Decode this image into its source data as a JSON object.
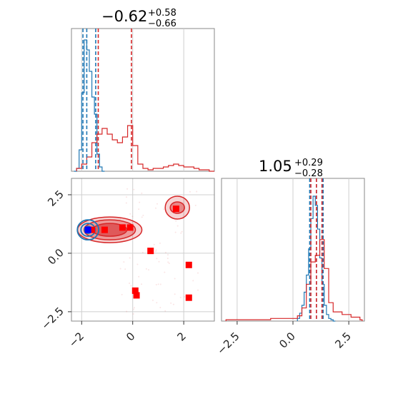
{
  "chart_data": [
    {
      "type": "histogram",
      "panel": "top-left marginal",
      "title": {
        "main": "−0.62",
        "upper": "+0.58",
        "lower": "−0.66"
      },
      "xlim": [
        -2.4,
        3.2
      ],
      "grid": true,
      "series": [
        {
          "color": "#1f77b4",
          "bins": [
            -2.3,
            -2.2,
            -2.1,
            -2.0,
            -1.9,
            -1.8,
            -1.7,
            -1.6,
            -1.5,
            -1.4,
            -1.3,
            -1.2
          ],
          "density": [
            0,
            0.02,
            0.15,
            0.55,
            0.92,
            0.85,
            0.7,
            0.52,
            0.4,
            0.12,
            0.03,
            0
          ],
          "quantile_lines": [
            -1.95,
            -1.8,
            -1.45
          ]
        },
        {
          "color": "#d62728",
          "bins": [
            -2.2,
            -2.0,
            -1.8,
            -1.6,
            -1.4,
            -1.2,
            -1.0,
            -0.8,
            -0.6,
            -0.4,
            -0.2,
            0.0,
            0.2,
            0.4,
            0.6,
            0.8,
            1.0,
            1.2,
            1.4,
            1.6,
            1.8,
            2.0,
            2.2,
            2.4,
            2.6,
            2.8,
            3.0
          ],
          "density": [
            0.02,
            0.05,
            0.1,
            0.2,
            0.26,
            0.3,
            0.26,
            0.22,
            0.2,
            0.24,
            0.32,
            0.18,
            0.05,
            0.02,
            0.01,
            0.02,
            0.02,
            0.03,
            0.04,
            0.05,
            0.04,
            0.03,
            0.03,
            0.02,
            0.01,
            0.01,
            0
          ],
          "quantile_lines": [
            -1.35,
            -0.05
          ]
        }
      ]
    },
    {
      "type": "scatter",
      "panel": "bottom-left joint",
      "xlim": [
        -2.4,
        3.2
      ],
      "ylim": [
        -2.9,
        3.2
      ],
      "xticks": [
        "−2",
        "0",
        "2"
      ],
      "yticks": [
        "−2.5",
        "0.0",
        "2.5"
      ],
      "grid": true,
      "red_markers": [
        {
          "x": -1.6,
          "y": 1.0
        },
        {
          "x": -1.1,
          "y": 1.0
        },
        {
          "x": -0.4,
          "y": 1.1
        },
        {
          "x": -0.1,
          "y": 1.1
        },
        {
          "x": 0.7,
          "y": 0.1
        },
        {
          "x": 1.7,
          "y": 1.9
        },
        {
          "x": 2.2,
          "y": -0.5
        },
        {
          "x": 2.2,
          "y": -1.9
        },
        {
          "x": 0.1,
          "y": -1.6
        },
        {
          "x": 0.15,
          "y": -1.8
        }
      ],
      "blue_marker": {
        "x": -1.75,
        "y": 1.0
      },
      "blue_contour_center": {
        "x": -1.75,
        "y": 1.0
      },
      "red_contour_regions": [
        {
          "x": -0.9,
          "y": 1.0
        },
        {
          "x": 1.75,
          "y": 1.95
        }
      ]
    },
    {
      "type": "histogram",
      "panel": "bottom-right marginal",
      "title": {
        "main": "1.05",
        "upper": "+0.29",
        "lower": "−0.28"
      },
      "xlim": [
        -3.2,
        3.2
      ],
      "xticks": [
        "−2.5",
        "0.0",
        "2.5"
      ],
      "grid": true,
      "series": [
        {
          "color": "#1f77b4",
          "bins": [
            0.2,
            0.3,
            0.4,
            0.5,
            0.6,
            0.7,
            0.8,
            0.9,
            1.0,
            1.1,
            1.2,
            1.3,
            1.4,
            1.5,
            1.6,
            1.7,
            1.8
          ],
          "density": [
            0.02,
            0.06,
            0.12,
            0.22,
            0.35,
            0.55,
            0.78,
            0.95,
            0.88,
            0.7,
            0.48,
            0.28,
            0.12,
            0.05,
            0.02,
            0.01,
            0
          ],
          "quantile_lines": [
            0.75,
            1.05,
            1.35
          ]
        },
        {
          "color": "#d62728",
          "bins": [
            -3.0,
            -2.6,
            -2.2,
            -1.8,
            -1.4,
            -1.0,
            -0.6,
            -0.2,
            0.2,
            0.4,
            0.6,
            0.8,
            1.0,
            1.2,
            1.4,
            1.6,
            1.8,
            2.2,
            2.6,
            3.0
          ],
          "density": [
            0.01,
            0.01,
            0.01,
            0.01,
            0.01,
            0.02,
            0.02,
            0.02,
            0.04,
            0.1,
            0.28,
            0.45,
            0.5,
            0.62,
            0.4,
            0.14,
            0.07,
            0.05,
            0.03,
            0.01
          ],
          "quantile_lines": [
            0.8,
            1.05,
            1.3
          ]
        }
      ]
    }
  ]
}
